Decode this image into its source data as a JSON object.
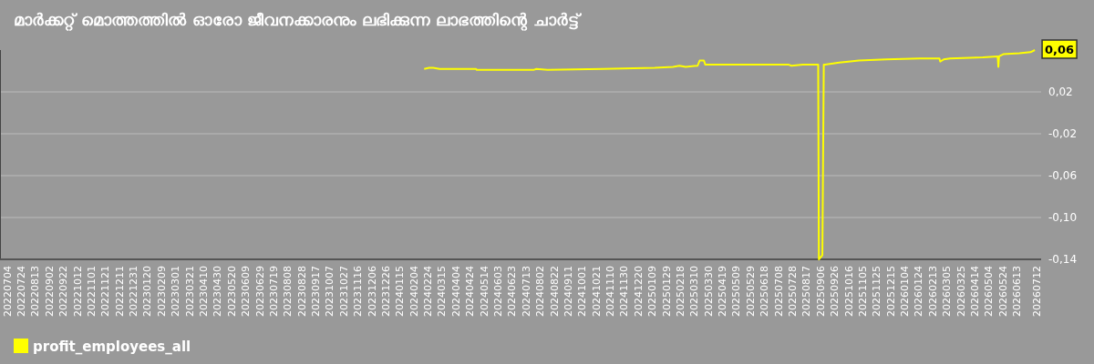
{
  "chart_data": {
    "type": "line",
    "title": "മാർക്കറ്റ് മൊത്തത്തിൽ ഓരോ ജീവനക്കാരനും ലഭിക്കുന്ന ലാഭത്തിന്റെ ചാർട്ട്",
    "x": [
      "2024-02-19",
      "2024-02-26",
      "2024-03-03",
      "2024-03-12",
      "2024-05-03",
      "2024-05-04",
      "2024-07-24",
      "2024-07-28",
      "2024-08-13",
      "2024-10-30",
      "2025-01-13",
      "2025-02-08",
      "2025-02-17",
      "2025-02-26",
      "2025-03-15",
      "2025-03-18",
      "2025-03-24",
      "2025-03-26",
      "2025-04-23",
      "2025-07-23",
      "2025-07-27",
      "2025-08-12",
      "2025-09-03",
      "2025-09-04",
      "2025-09-09",
      "2025-09-11",
      "2025-09-13",
      "2025-10-03",
      "2025-10-16",
      "2025-10-31",
      "2025-12-09",
      "2026-01-25",
      "2026-02-23",
      "2026-02-24",
      "2026-03-01",
      "2026-03-10",
      "2026-04-26",
      "2026-05-17",
      "2026-05-18",
      "2026-05-19",
      "2026-05-25",
      "2026-06-17",
      "2026-07-03",
      "2026-07-09"
    ],
    "series": [
      {
        "name": "profit_employees_all",
        "color": "#ffff00",
        "values": [
          0.042,
          0.043,
          0.043,
          0.042,
          0.042,
          0.041,
          0.041,
          0.042,
          0.041,
          0.042,
          0.043,
          0.044,
          0.045,
          0.044,
          0.045,
          0.05,
          0.05,
          0.046,
          0.046,
          0.046,
          0.045,
          0.046,
          0.046,
          -0.14,
          -0.136,
          0.046,
          0.046,
          0.048,
          0.049,
          0.05,
          0.051,
          0.052,
          0.052,
          0.049,
          0.051,
          0.052,
          0.053,
          0.054,
          0.044,
          0.054,
          0.056,
          0.057,
          0.058,
          0.06
        ]
      }
    ],
    "xlim": [
      "2022-06-24",
      "2026-07-18"
    ],
    "xticks": [
      {
        "value": "2022-07-04",
        "label": "20220704"
      },
      {
        "value": "2022-07-24",
        "label": "20220724"
      },
      {
        "value": "2022-08-13",
        "label": "20220813"
      },
      {
        "value": "2022-09-02",
        "label": "20220902"
      },
      {
        "value": "2022-09-22",
        "label": "20220922"
      },
      {
        "value": "2022-10-12",
        "label": "20221012"
      },
      {
        "value": "2022-11-01",
        "label": "20221101"
      },
      {
        "value": "2022-11-21",
        "label": "20221121"
      },
      {
        "value": "2022-12-11",
        "label": "20221211"
      },
      {
        "value": "2022-12-31",
        "label": "20221231"
      },
      {
        "value": "2023-01-20",
        "label": "20230120"
      },
      {
        "value": "2023-02-09",
        "label": "20230209"
      },
      {
        "value": "2023-03-01",
        "label": "20230301"
      },
      {
        "value": "2023-03-21",
        "label": "20230321"
      },
      {
        "value": "2023-04-10",
        "label": "20230410"
      },
      {
        "value": "2023-04-30",
        "label": "20230430"
      },
      {
        "value": "2023-05-20",
        "label": "20230520"
      },
      {
        "value": "2023-06-09",
        "label": "20230609"
      },
      {
        "value": "2023-06-29",
        "label": "20230629"
      },
      {
        "value": "2023-07-19",
        "label": "20230719"
      },
      {
        "value": "2023-08-08",
        "label": "20230808"
      },
      {
        "value": "2023-08-28",
        "label": "20230828"
      },
      {
        "value": "2023-09-17",
        "label": "20230917"
      },
      {
        "value": "2023-10-07",
        "label": "20231007"
      },
      {
        "value": "2023-10-27",
        "label": "20231027"
      },
      {
        "value": "2023-11-16",
        "label": "20231116"
      },
      {
        "value": "2023-12-06",
        "label": "20231206"
      },
      {
        "value": "2023-12-26",
        "label": "20231226"
      },
      {
        "value": "2024-01-15",
        "label": "20240115"
      },
      {
        "value": "2024-02-04",
        "label": "20240204"
      },
      {
        "value": "2024-02-24",
        "label": "20240224"
      },
      {
        "value": "2024-03-15",
        "label": "20240315"
      },
      {
        "value": "2024-04-04",
        "label": "20240404"
      },
      {
        "value": "2024-04-24",
        "label": "20240424"
      },
      {
        "value": "2024-05-14",
        "label": "20240514"
      },
      {
        "value": "2024-06-03",
        "label": "20240603"
      },
      {
        "value": "2024-06-23",
        "label": "20240623"
      },
      {
        "value": "2024-07-13",
        "label": "20240713"
      },
      {
        "value": "2024-08-02",
        "label": "20240802"
      },
      {
        "value": "2024-08-22",
        "label": "20240822"
      },
      {
        "value": "2024-09-11",
        "label": "20240911"
      },
      {
        "value": "2024-10-01",
        "label": "20241001"
      },
      {
        "value": "2024-10-21",
        "label": "20241021"
      },
      {
        "value": "2024-11-10",
        "label": "20241110"
      },
      {
        "value": "2024-11-30",
        "label": "20241130"
      },
      {
        "value": "2024-12-20",
        "label": "20241220"
      },
      {
        "value": "2025-01-09",
        "label": "20250109"
      },
      {
        "value": "2025-01-29",
        "label": "20250129"
      },
      {
        "value": "2025-02-18",
        "label": "20250218"
      },
      {
        "value": "2025-03-10",
        "label": "20250310"
      },
      {
        "value": "2025-03-30",
        "label": "20250330"
      },
      {
        "value": "2025-04-19",
        "label": "20250419"
      },
      {
        "value": "2025-05-09",
        "label": "20250509"
      },
      {
        "value": "2025-05-29",
        "label": "20250529"
      },
      {
        "value": "2025-06-18",
        "label": "20250618"
      },
      {
        "value": "2025-07-08",
        "label": "20250708"
      },
      {
        "value": "2025-07-28",
        "label": "20250728"
      },
      {
        "value": "2025-08-17",
        "label": "20250817"
      },
      {
        "value": "2025-09-06",
        "label": "20250906"
      },
      {
        "value": "2025-09-26",
        "label": "20250926"
      },
      {
        "value": "2025-10-16",
        "label": "20251016"
      },
      {
        "value": "2025-11-05",
        "label": "20251105"
      },
      {
        "value": "2025-11-25",
        "label": "20251125"
      },
      {
        "value": "2025-12-15",
        "label": "20251215"
      },
      {
        "value": "2026-01-04",
        "label": "20260104"
      },
      {
        "value": "2026-01-24",
        "label": "20260124"
      },
      {
        "value": "2026-02-13",
        "label": "20260213"
      },
      {
        "value": "2026-03-05",
        "label": "20260305"
      },
      {
        "value": "2026-03-25",
        "label": "20260325"
      },
      {
        "value": "2026-04-14",
        "label": "20260414"
      },
      {
        "value": "2026-05-04",
        "label": "20260504"
      },
      {
        "value": "2026-05-24",
        "label": "20260524"
      },
      {
        "value": "2026-06-13",
        "label": "20260613"
      },
      {
        "value": "2026-07-12",
        "label": "20260712"
      }
    ],
    "ylim": [
      -0.14,
      0.06
    ],
    "yticks": [
      {
        "value": 0.02,
        "label": "0,02"
      },
      {
        "value": -0.02,
        "label": "-0,02"
      },
      {
        "value": -0.06,
        "label": "-0,06"
      },
      {
        "value": -0.1,
        "label": "-0,10"
      },
      {
        "value": -0.14,
        "label": "-0,14"
      }
    ],
    "grid": "y",
    "legend": "bottom left",
    "annotations": [
      {
        "text": "0,06",
        "x": "2026-07-09",
        "y": 0.06
      }
    ]
  }
}
